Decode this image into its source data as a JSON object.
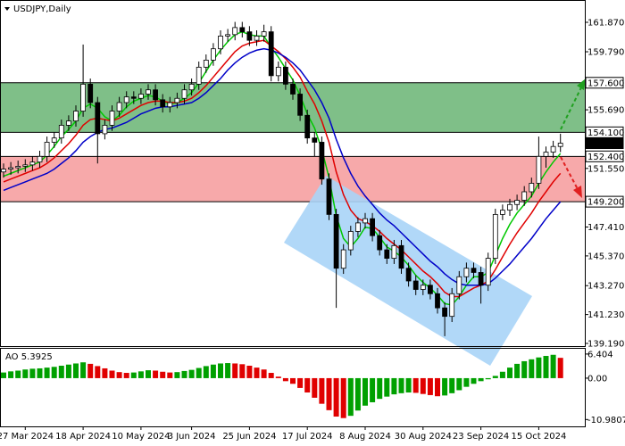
{
  "chart_data": [
    {
      "type": "candlestick",
      "title": "USDJPY,Daily",
      "categories": [
        null,
        null,
        null,
        "27 Mar 2024",
        null,
        null,
        null,
        null,
        null,
        null,
        null,
        "18 Apr 2024",
        null,
        null,
        null,
        null,
        null,
        null,
        null,
        "10 May 2024",
        null,
        null,
        null,
        null,
        null,
        null,
        "3 Jun 2024",
        null,
        null,
        null,
        null,
        null,
        null,
        null,
        "25 Jun 2024",
        null,
        null,
        null,
        null,
        null,
        null,
        null,
        "17 Jul 2024",
        null,
        null,
        null,
        null,
        null,
        null,
        null,
        "8 Aug 2024",
        null,
        null,
        null,
        null,
        null,
        null,
        null,
        "30 Aug 2024",
        null,
        null,
        null,
        null,
        null,
        null,
        null,
        "23 Sep 2024",
        null,
        null,
        null,
        null,
        null,
        null,
        null,
        "15 Oct 2024",
        null,
        null,
        null
      ],
      "open": [
        151.3,
        151.5,
        151.6,
        151.7,
        151.8,
        152.0,
        152.4,
        153.4,
        153.7,
        154.6,
        154.9,
        155.6,
        157.5,
        156.2,
        154.0,
        154.6,
        155.6,
        156.2,
        156.6,
        156.5,
        156.8,
        157.1,
        156.4,
        155.9,
        156.2,
        156.5,
        157.1,
        157.5,
        158.7,
        159.2,
        160.0,
        160.9,
        161.0,
        161.5,
        161.2,
        160.6,
        160.9,
        161.2,
        158.1,
        158.7,
        157.5,
        156.8,
        155.3,
        153.7,
        153.4,
        150.8,
        148.3,
        144.5,
        145.8,
        147.1,
        147.7,
        148.0,
        146.8,
        145.8,
        145.2,
        146.1,
        144.5,
        143.6,
        143.0,
        143.3,
        142.7,
        141.7,
        141.1,
        142.7,
        143.9,
        144.5,
        144.2,
        143.3,
        145.2,
        148.3,
        148.6,
        149.0,
        149.3,
        149.9,
        150.5,
        152.4,
        152.7,
        153.1
      ],
      "high": [
        151.9,
        152.0,
        152.1,
        152.2,
        152.4,
        152.8,
        153.8,
        154.1,
        155.0,
        155.3,
        156.0,
        160.3,
        157.9,
        156.6,
        155.0,
        156.0,
        156.6,
        157.0,
        157.0,
        157.2,
        157.5,
        157.5,
        156.8,
        156.6,
        156.9,
        157.5,
        157.9,
        159.1,
        159.6,
        160.4,
        161.3,
        161.4,
        161.9,
        161.9,
        161.6,
        161.3,
        161.7,
        161.6,
        159.1,
        159.1,
        157.9,
        157.2,
        155.7,
        154.1,
        153.8,
        151.2,
        148.7,
        146.2,
        147.5,
        148.1,
        148.4,
        148.4,
        147.2,
        146.2,
        146.5,
        146.5,
        144.9,
        144.0,
        143.7,
        143.7,
        143.1,
        142.1,
        143.1,
        144.3,
        144.9,
        144.9,
        144.6,
        145.6,
        148.7,
        149.0,
        149.4,
        149.7,
        150.3,
        150.9,
        153.8,
        153.1,
        153.5,
        154.0
      ],
      "low": [
        150.9,
        151.1,
        151.2,
        151.3,
        151.4,
        151.6,
        152.0,
        153.0,
        153.3,
        154.2,
        154.5,
        155.2,
        155.8,
        151.9,
        153.6,
        154.2,
        155.2,
        155.8,
        156.1,
        156.1,
        156.4,
        156.0,
        155.5,
        155.5,
        155.8,
        156.1,
        156.7,
        157.1,
        158.3,
        158.8,
        159.6,
        160.5,
        160.6,
        160.8,
        160.2,
        160.2,
        160.5,
        157.7,
        157.7,
        157.1,
        156.4,
        154.9,
        153.3,
        152.4,
        150.4,
        147.9,
        141.7,
        144.1,
        145.4,
        146.7,
        147.3,
        146.4,
        145.4,
        144.8,
        144.8,
        144.1,
        143.2,
        142.6,
        142.6,
        142.3,
        141.3,
        139.7,
        140.7,
        142.3,
        143.5,
        143.8,
        142.0,
        142.9,
        144.8,
        147.9,
        148.2,
        148.6,
        148.9,
        149.5,
        150.1,
        151.6,
        152.3,
        152.7
      ],
      "close": [
        151.5,
        151.6,
        151.7,
        151.8,
        152.0,
        152.4,
        153.4,
        153.7,
        154.6,
        154.9,
        155.6,
        157.5,
        156.2,
        154.0,
        154.6,
        155.6,
        156.2,
        156.6,
        156.5,
        156.8,
        157.1,
        156.4,
        155.9,
        156.2,
        156.5,
        157.1,
        157.5,
        158.7,
        159.2,
        160.0,
        160.9,
        161.0,
        161.5,
        161.2,
        160.6,
        160.9,
        161.2,
        158.1,
        158.7,
        157.5,
        156.8,
        155.3,
        153.7,
        153.4,
        150.8,
        148.3,
        144.5,
        145.8,
        147.1,
        147.7,
        148.0,
        146.8,
        145.8,
        145.2,
        146.1,
        144.5,
        143.6,
        143.0,
        143.3,
        142.7,
        141.7,
        141.1,
        142.7,
        143.9,
        144.5,
        144.2,
        143.3,
        145.2,
        148.3,
        148.6,
        149.0,
        149.3,
        149.9,
        150.5,
        152.4,
        152.7,
        153.1,
        153.333
      ],
      "lines": [
        {
          "color": "#00c800",
          "values": [
            151.0,
            151.2,
            151.4,
            151.6,
            151.8,
            152.0,
            152.5,
            153.1,
            153.8,
            154.3,
            154.9,
            155.8,
            156.1,
            155.8,
            155.2,
            154.9,
            155.3,
            155.9,
            156.3,
            156.5,
            156.7,
            156.6,
            156.3,
            156.1,
            156.2,
            156.5,
            156.9,
            157.6,
            158.4,
            159.2,
            159.9,
            160.5,
            161.0,
            161.2,
            161.0,
            160.9,
            160.9,
            160.1,
            159.4,
            158.6,
            157.8,
            156.7,
            155.4,
            154.4,
            152.9,
            150.9,
            148.2,
            146.6,
            146.0,
            146.6,
            147.4,
            147.3,
            146.7,
            146.0,
            145.7,
            145.3,
            144.7,
            144.0,
            143.5,
            143.1,
            142.6,
            142.0,
            141.9,
            142.5,
            143.3,
            143.9,
            143.9,
            144.2,
            145.4,
            146.6,
            147.6,
            148.4,
            149.0,
            149.6,
            150.5,
            151.3,
            152.0,
            152.6
          ]
        },
        {
          "color": "#e00000",
          "values": [
            150.6,
            150.8,
            151.0,
            151.2,
            151.4,
            151.6,
            151.9,
            152.3,
            152.8,
            153.3,
            153.9,
            154.6,
            155.0,
            155.1,
            155.0,
            154.9,
            155.1,
            155.4,
            155.7,
            156.0,
            156.2,
            156.3,
            156.3,
            156.2,
            156.2,
            156.3,
            156.5,
            156.9,
            157.4,
            158.0,
            158.6,
            159.2,
            159.8,
            160.2,
            160.4,
            160.5,
            160.6,
            160.2,
            159.8,
            159.3,
            158.7,
            158.0,
            157.0,
            156.1,
            154.9,
            153.4,
            151.3,
            149.7,
            148.6,
            148.0,
            147.8,
            147.5,
            147.1,
            146.6,
            146.2,
            145.8,
            145.3,
            144.8,
            144.3,
            143.9,
            143.4,
            142.8,
            142.5,
            142.5,
            142.8,
            143.1,
            143.3,
            143.6,
            144.4,
            145.3,
            146.2,
            147.0,
            147.7,
            148.4,
            149.2,
            149.9,
            150.6,
            151.2
          ]
        },
        {
          "color": "#0000c8",
          "values": [
            150.0,
            150.2,
            150.4,
            150.6,
            150.8,
            151.0,
            151.2,
            151.5,
            151.9,
            152.3,
            152.8,
            153.4,
            153.8,
            154.1,
            154.3,
            154.4,
            154.6,
            154.8,
            155.1,
            155.4,
            155.6,
            155.8,
            155.9,
            155.9,
            156.0,
            156.1,
            156.2,
            156.5,
            156.9,
            157.4,
            157.9,
            158.5,
            159.0,
            159.4,
            159.7,
            159.9,
            160.0,
            159.9,
            159.7,
            159.4,
            159.0,
            158.5,
            157.8,
            157.1,
            156.2,
            155.1,
            153.6,
            152.3,
            151.2,
            150.3,
            149.6,
            149.0,
            148.4,
            147.9,
            147.5,
            147.0,
            146.5,
            146.0,
            145.5,
            145.0,
            144.6,
            144.1,
            143.7,
            143.4,
            143.3,
            143.3,
            143.3,
            143.4,
            143.8,
            144.3,
            144.8,
            145.4,
            146.0,
            146.6,
            147.3,
            148.0,
            148.6,
            149.2
          ]
        }
      ],
      "zones": [
        {
          "from": 157.6,
          "to": 154.1,
          "color": "#7fbf88"
        },
        {
          "from": 152.4,
          "to": 149.2,
          "color": "#f7a9aa"
        }
      ],
      "marked_levels": [
        157.6,
        154.1,
        152.4,
        149.2
      ],
      "ylim": [
        139.0,
        163.32
      ],
      "yticks": [
        {
          "value": 161.87,
          "label": "161.870"
        },
        {
          "value": 159.79,
          "label": "159.790"
        },
        {
          "value": 157.6,
          "label": "157.600"
        },
        {
          "value": 155.69,
          "label": "155.690"
        },
        {
          "value": 154.1,
          "label": "154.100"
        },
        153.333,
        {
          "value": 152.4,
          "label": "152.400"
        },
        {
          "value": 151.55,
          "label": "151.550"
        },
        {
          "value": 149.2,
          "label": "149.200"
        },
        {
          "value": 147.41,
          "label": "147.410"
        },
        {
          "value": 145.37,
          "label": "145.370"
        },
        {
          "value": 143.27,
          "label": "143.270"
        },
        {
          "value": 141.23,
          "label": "141.230"
        },
        {
          "value": 139.19,
          "label": "139.190"
        }
      ]
    },
    {
      "type": "bar",
      "title": "AO",
      "values": [
        1.5,
        1.8,
        2.0,
        2.3,
        2.5,
        2.6,
        2.8,
        3.0,
        3.3,
        3.6,
        3.9,
        4.2,
        3.8,
        3.2,
        2.6,
        2.0,
        1.6,
        1.4,
        1.5,
        1.8,
        2.1,
        2.0,
        1.7,
        1.5,
        1.6,
        1.9,
        2.2,
        2.7,
        3.2,
        3.6,
        3.9,
        4.0,
        3.9,
        3.7,
        3.3,
        2.8,
        2.3,
        1.4,
        0.4,
        -0.8,
        -1.5,
        -2.6,
        -3.8,
        -5.2,
        -6.8,
        -8.5,
        -10.2,
        -10.6,
        -10.0,
        -8.6,
        -7.3,
        -6.4,
        -5.5,
        -4.9,
        -4.3,
        -4.0,
        -3.8,
        -3.9,
        -4.2,
        -4.5,
        -4.8,
        -4.6,
        -4.0,
        -3.2,
        -2.3,
        -1.5,
        -0.8,
        -0.3,
        0.6,
        1.7,
        2.8,
        3.8,
        4.5,
        5.0,
        5.5,
        5.9,
        6.2,
        5.3925
      ],
      "up_color": "#00a000",
      "down_color": "#e00000",
      "ylim": [
        -12.8,
        7.8
      ],
      "yticks": [
        6.404,
        {
          "value": 0,
          "label": "0.00"
        },
        -10.9807
      ]
    }
  ]
}
